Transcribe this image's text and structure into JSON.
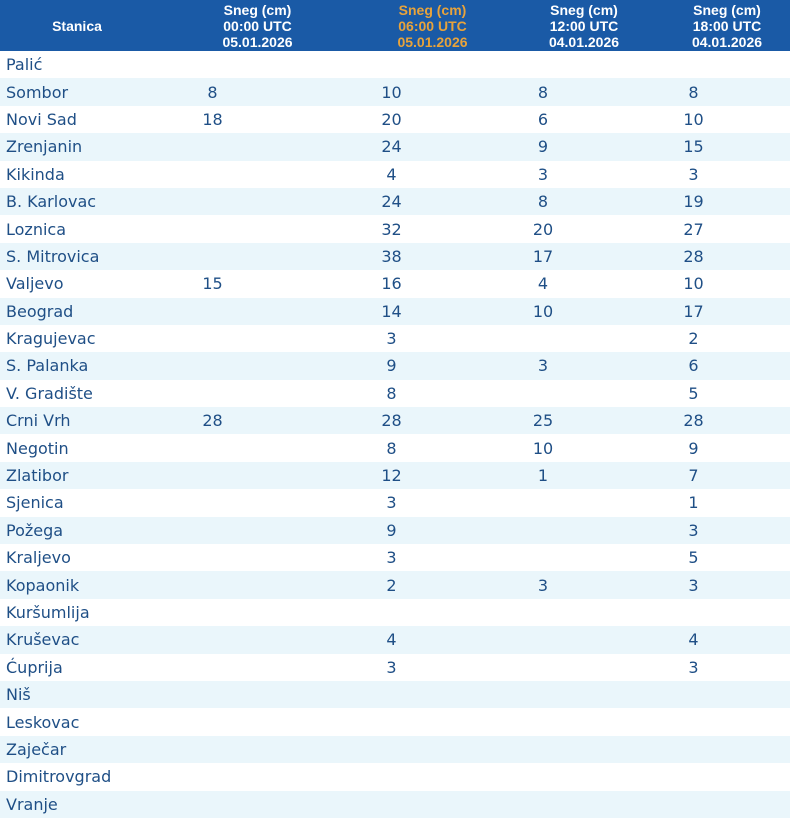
{
  "header": {
    "station": "Stanica",
    "columns": [
      {
        "line1": "Sneg (cm)",
        "line2": "00:00 UTC",
        "line3": "05.01.2026",
        "highlight": false
      },
      {
        "line1": "Sneg (cm)",
        "line2": "06:00 UTC",
        "line3": "05.01.2026",
        "highlight": true
      },
      {
        "line1": "Sneg (cm)",
        "line2": "12:00 UTC",
        "line3": "04.01.2026",
        "highlight": false
      },
      {
        "line1": "Sneg (cm)",
        "line2": "18:00 UTC",
        "line3": "04.01.2026",
        "highlight": false
      }
    ]
  },
  "rows": [
    {
      "station": "Palić",
      "v": [
        "",
        "",
        "",
        ""
      ]
    },
    {
      "station": "Sombor",
      "v": [
        "8",
        "10",
        "8",
        "8"
      ]
    },
    {
      "station": "Novi Sad",
      "v": [
        "18",
        "20",
        "6",
        "10"
      ]
    },
    {
      "station": "Zrenjanin",
      "v": [
        "",
        "24",
        "9",
        "15"
      ]
    },
    {
      "station": "Kikinda",
      "v": [
        "",
        "4",
        "3",
        "3"
      ]
    },
    {
      "station": "B. Karlovac",
      "v": [
        "",
        "24",
        "8",
        "19"
      ]
    },
    {
      "station": "Loznica",
      "v": [
        "",
        "32",
        "20",
        "27"
      ]
    },
    {
      "station": "S. Mitrovica",
      "v": [
        "",
        "38",
        "17",
        "28"
      ]
    },
    {
      "station": "Valjevo",
      "v": [
        "15",
        "16",
        "4",
        "10"
      ]
    },
    {
      "station": "Beograd",
      "v": [
        "",
        "14",
        "10",
        "17"
      ]
    },
    {
      "station": "Kragujevac",
      "v": [
        "",
        "3",
        "",
        "2"
      ]
    },
    {
      "station": "S. Palanka",
      "v": [
        "",
        "9",
        "3",
        "6"
      ]
    },
    {
      "station": "V. Gradište",
      "v": [
        "",
        "8",
        "",
        "5"
      ]
    },
    {
      "station": "Crni Vrh",
      "v": [
        "28",
        "28",
        "25",
        "28"
      ]
    },
    {
      "station": "Negotin",
      "v": [
        "",
        "8",
        "10",
        "9"
      ]
    },
    {
      "station": "Zlatibor",
      "v": [
        "",
        "12",
        "1",
        "7"
      ]
    },
    {
      "station": "Sjenica",
      "v": [
        "",
        "3",
        "",
        "1"
      ]
    },
    {
      "station": "Požega",
      "v": [
        "",
        "9",
        "",
        "3"
      ]
    },
    {
      "station": "Kraljevo",
      "v": [
        "",
        "3",
        "",
        "5"
      ]
    },
    {
      "station": "Kopaonik",
      "v": [
        "",
        "2",
        "3",
        "3"
      ]
    },
    {
      "station": "Kuršumlija",
      "v": [
        "",
        "",
        "",
        ""
      ]
    },
    {
      "station": "Kruševac",
      "v": [
        "",
        "4",
        "",
        "4"
      ]
    },
    {
      "station": "Ćuprija",
      "v": [
        "",
        "3",
        "",
        "3"
      ]
    },
    {
      "station": "Niš",
      "v": [
        "",
        "",
        "",
        ""
      ]
    },
    {
      "station": "Leskovac",
      "v": [
        "",
        "",
        "",
        ""
      ]
    },
    {
      "station": "Zaječar",
      "v": [
        "",
        "",
        "",
        ""
      ]
    },
    {
      "station": "Dimitrovgrad",
      "v": [
        "",
        "",
        "",
        ""
      ]
    },
    {
      "station": "Vranje",
      "v": [
        "",
        "",
        "",
        ""
      ]
    }
  ],
  "colors": {
    "header_bg": "#1a5aa6",
    "header_text": "#ffffff",
    "header_highlight": "#e8a33b",
    "row_alt_bg": "#eaf6fb",
    "cell_text": "#1f4f86"
  }
}
